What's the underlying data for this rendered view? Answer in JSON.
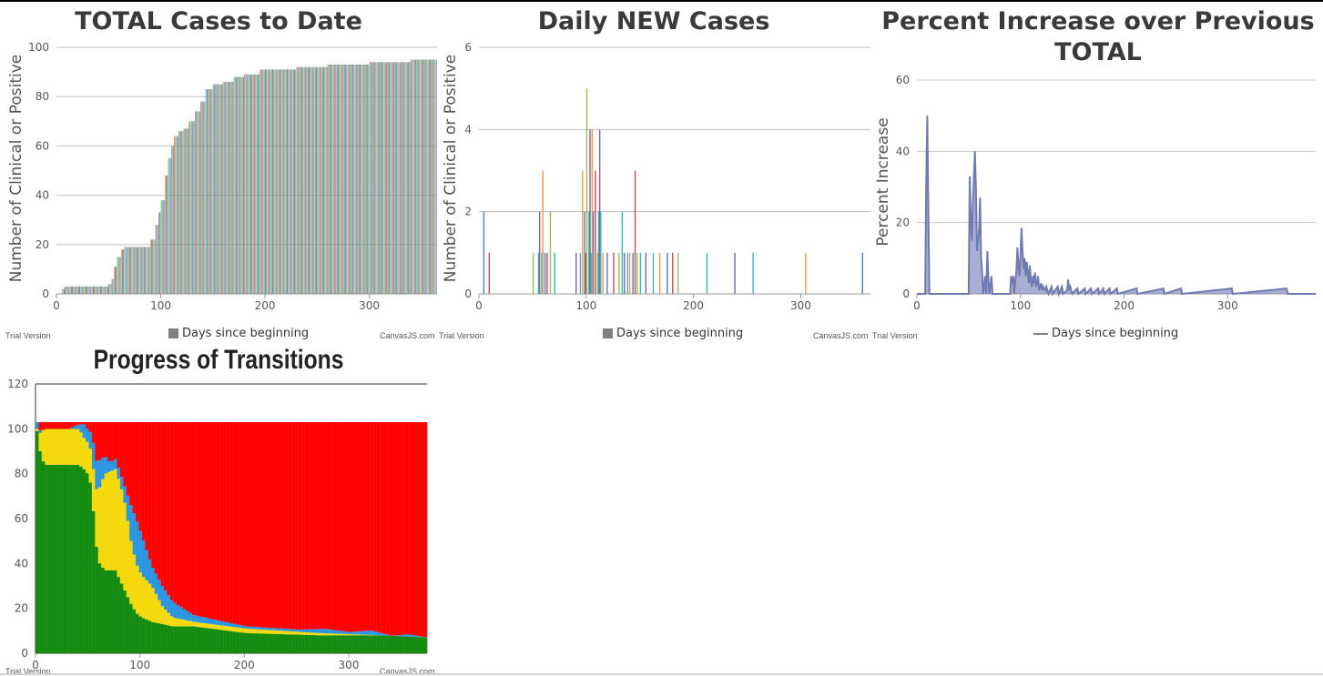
{
  "watermarks": {
    "trial": "Trial Version",
    "brand": "CanvasJS.com"
  },
  "chart_data": [
    {
      "type": "bar",
      "title": "TOTAL Cases to Date",
      "ylabel": "Number of Clinical or Positive",
      "legend": "Days since beginning",
      "legend_position": "bottom",
      "xlim": [
        0,
        365
      ],
      "ylim": [
        0,
        100
      ],
      "x_ticks": [
        0,
        100,
        200,
        300
      ],
      "y_ticks": [
        0,
        20,
        40,
        60,
        80,
        100
      ],
      "bar_colors": [
        "#4f81bc",
        "#c0504e",
        "#9bbb58",
        "#23bfaa",
        "#8064a1",
        "#4aacc5",
        "#f79647"
      ],
      "cumulative_points": [
        [
          0,
          0
        ],
        [
          5,
          2
        ],
        [
          8,
          3
        ],
        [
          50,
          4
        ],
        [
          53,
          6
        ],
        [
          55,
          11
        ],
        [
          58,
          15
        ],
        [
          62,
          18
        ],
        [
          65,
          19
        ],
        [
          85,
          19
        ],
        [
          90,
          22
        ],
        [
          95,
          28
        ],
        [
          98,
          33
        ],
        [
          100,
          38
        ],
        [
          104,
          48
        ],
        [
          107,
          55
        ],
        [
          110,
          60
        ],
        [
          113,
          64
        ],
        [
          117,
          66
        ],
        [
          122,
          67
        ],
        [
          127,
          70
        ],
        [
          133,
          74
        ],
        [
          138,
          78
        ],
        [
          143,
          83
        ],
        [
          150,
          85
        ],
        [
          160,
          86
        ],
        [
          170,
          88
        ],
        [
          180,
          89
        ],
        [
          195,
          91
        ],
        [
          230,
          92
        ],
        [
          260,
          93
        ],
        [
          300,
          94
        ],
        [
          340,
          95
        ],
        [
          365,
          95
        ]
      ]
    },
    {
      "type": "bar",
      "title": "Daily NEW Cases",
      "ylabel": "Number of Clinical or Positive",
      "legend": "Days since beginning",
      "legend_position": "bottom",
      "xlim": [
        0,
        365
      ],
      "ylim": [
        0,
        6
      ],
      "x_ticks": [
        0,
        100,
        200,
        300
      ],
      "y_ticks": [
        0,
        2,
        4,
        6
      ],
      "points": [
        [
          4,
          2
        ],
        [
          9,
          1
        ],
        [
          50,
          1
        ],
        [
          55,
          1
        ],
        [
          56,
          2
        ],
        [
          58,
          1
        ],
        [
          59,
          3
        ],
        [
          61,
          1
        ],
        [
          63,
          1
        ],
        [
          66,
          2
        ],
        [
          70,
          1
        ],
        [
          90,
          1
        ],
        [
          94,
          1
        ],
        [
          96,
          3
        ],
        [
          98,
          2
        ],
        [
          99,
          1
        ],
        [
          100,
          5
        ],
        [
          102,
          2
        ],
        [
          103,
          4
        ],
        [
          104,
          1
        ],
        [
          105,
          4
        ],
        [
          106,
          2
        ],
        [
          108,
          3
        ],
        [
          110,
          1
        ],
        [
          111,
          2
        ],
        [
          112,
          4
        ],
        [
          113,
          2
        ],
        [
          115,
          1
        ],
        [
          119,
          1
        ],
        [
          125,
          1
        ],
        [
          130,
          1
        ],
        [
          133,
          2
        ],
        [
          135,
          1
        ],
        [
          138,
          1
        ],
        [
          140,
          1
        ],
        [
          143,
          1
        ],
        [
          145,
          3
        ],
        [
          147,
          1
        ],
        [
          150,
          1
        ],
        [
          155,
          1
        ],
        [
          162,
          1
        ],
        [
          168,
          1
        ],
        [
          175,
          1
        ],
        [
          180,
          1
        ],
        [
          185,
          1
        ],
        [
          212,
          1
        ],
        [
          238,
          1
        ],
        [
          255,
          1
        ],
        [
          304,
          1
        ],
        [
          357,
          1
        ]
      ]
    },
    {
      "type": "area",
      "title": "Percent Increase over Previous TOTAL",
      "ylabel": "Percent Increase",
      "legend": "Days since beginning",
      "legend_position": "bottom",
      "color": "#6f7ab1",
      "xlim": [
        0,
        385
      ],
      "ylim": [
        0,
        60
      ],
      "x_ticks": [
        0,
        100,
        200,
        300
      ],
      "y_ticks": [
        0,
        20,
        40,
        60
      ],
      "points": [
        [
          0,
          0
        ],
        [
          8,
          0
        ],
        [
          9,
          30
        ],
        [
          10,
          50
        ],
        [
          11,
          25
        ],
        [
          12,
          0
        ],
        [
          50,
          0
        ],
        [
          51,
          33
        ],
        [
          52,
          20
        ],
        [
          53,
          15
        ],
        [
          54,
          25
        ],
        [
          56,
          40
        ],
        [
          57,
          30
        ],
        [
          58,
          12
        ],
        [
          60,
          18
        ],
        [
          61,
          27
        ],
        [
          62,
          10
        ],
        [
          63,
          6
        ],
        [
          64,
          0
        ],
        [
          66,
          5
        ],
        [
          67,
          0
        ],
        [
          68,
          12
        ],
        [
          69,
          4
        ],
        [
          70,
          0
        ],
        [
          72,
          5
        ],
        [
          73,
          0
        ],
        [
          90,
          0
        ],
        [
          91,
          5
        ],
        [
          92,
          3
        ],
        [
          93,
          5
        ],
        [
          94,
          0
        ],
        [
          95,
          4
        ],
        [
          96,
          6
        ],
        [
          97,
          13
        ],
        [
          98,
          8
        ],
        [
          99,
          5
        ],
        [
          100,
          11
        ],
        [
          101,
          18.5
        ],
        [
          102,
          12
        ],
        [
          103,
          7
        ],
        [
          104,
          10
        ],
        [
          105,
          5
        ],
        [
          106,
          9
        ],
        [
          107,
          6
        ],
        [
          108,
          3
        ],
        [
          109,
          8
        ],
        [
          110,
          4
        ],
        [
          111,
          2
        ],
        [
          112,
          5
        ],
        [
          113,
          3
        ],
        [
          114,
          6
        ],
        [
          115,
          2
        ],
        [
          116,
          3
        ],
        [
          117,
          5
        ],
        [
          118,
          1
        ],
        [
          120,
          3
        ],
        [
          121,
          1
        ],
        [
          122,
          2
        ],
        [
          124,
          1
        ],
        [
          125,
          2
        ],
        [
          127,
          0
        ],
        [
          130,
          2
        ],
        [
          131,
          0
        ],
        [
          136,
          2
        ],
        [
          137,
          0
        ],
        [
          140,
          2
        ],
        [
          141,
          0
        ],
        [
          145,
          1
        ],
        [
          146,
          4
        ],
        [
          147,
          1
        ],
        [
          148,
          2
        ],
        [
          150,
          0
        ],
        [
          155,
          1.5
        ],
        [
          156,
          0
        ],
        [
          162,
          1.5
        ],
        [
          163,
          0
        ],
        [
          168,
          1.5
        ],
        [
          169,
          0
        ],
        [
          175,
          1.5
        ],
        [
          176,
          0
        ],
        [
          180,
          1.5
        ],
        [
          181,
          0
        ],
        [
          186,
          1.5
        ],
        [
          187,
          0
        ],
        [
          193,
          1.5
        ],
        [
          194,
          0
        ],
        [
          212,
          1.5
        ],
        [
          213,
          0
        ],
        [
          238,
          1.5
        ],
        [
          239,
          0
        ],
        [
          255,
          1.5
        ],
        [
          256,
          0
        ],
        [
          304,
          1.5
        ],
        [
          305,
          0
        ],
        [
          357,
          1.5
        ],
        [
          358,
          0
        ],
        [
          385,
          0
        ]
      ]
    },
    {
      "type": "stacked-bar",
      "title": "Progress of Transitions",
      "xlim": [
        0,
        375
      ],
      "ylim": [
        0,
        120
      ],
      "x_ticks": [
        0,
        100,
        200,
        300
      ],
      "y_ticks": [
        0,
        20,
        40,
        60,
        80,
        100,
        120
      ],
      "total": 103,
      "series": [
        {
          "color": "#138b0f",
          "points": [
            [
              0,
              99
            ],
            [
              4,
              87
            ],
            [
              8,
              84
            ],
            [
              40,
              84
            ],
            [
              45,
              82
            ],
            [
              50,
              79
            ],
            [
              53,
              70
            ],
            [
              56,
              50
            ],
            [
              60,
              40
            ],
            [
              65,
              37
            ],
            [
              75,
              37
            ],
            [
              80,
              32
            ],
            [
              85,
              27
            ],
            [
              90,
              22
            ],
            [
              95,
              18
            ],
            [
              100,
              16
            ],
            [
              110,
              14
            ],
            [
              130,
              12
            ],
            [
              150,
              12
            ],
            [
              200,
              9
            ],
            [
              270,
              8
            ],
            [
              330,
              8
            ],
            [
              375,
              7
            ]
          ]
        },
        {
          "color": "#f5d90a",
          "points": [
            [
              0,
              1
            ],
            [
              5,
              13
            ],
            [
              8,
              16
            ],
            [
              40,
              16
            ],
            [
              45,
              14
            ],
            [
              50,
              14
            ],
            [
              55,
              20
            ],
            [
              60,
              34
            ],
            [
              65,
              43
            ],
            [
              75,
              45
            ],
            [
              80,
              43
            ],
            [
              85,
              38
            ],
            [
              90,
              28
            ],
            [
              95,
              22
            ],
            [
              100,
              19
            ],
            [
              110,
              16
            ],
            [
              120,
              8
            ],
            [
              130,
              4
            ],
            [
              150,
              2
            ],
            [
              200,
              2
            ],
            [
              270,
              1
            ],
            [
              330,
              0
            ],
            [
              375,
              0
            ]
          ]
        },
        {
          "color": "#2a96e2",
          "points": [
            [
              0,
              3
            ],
            [
              5,
              0
            ],
            [
              30,
              0
            ],
            [
              40,
              2
            ],
            [
              45,
              6
            ],
            [
              50,
              6
            ],
            [
              55,
              13
            ],
            [
              60,
              12
            ],
            [
              70,
              4
            ],
            [
              80,
              5
            ],
            [
              85,
              8
            ],
            [
              90,
              16
            ],
            [
              95,
              20
            ],
            [
              100,
              18
            ],
            [
              110,
              9
            ],
            [
              120,
              9
            ],
            [
              130,
              7
            ],
            [
              150,
              3
            ],
            [
              200,
              1
            ],
            [
              250,
              1
            ],
            [
              275,
              2
            ],
            [
              300,
              1
            ],
            [
              320,
              2
            ],
            [
              340,
              0
            ],
            [
              355,
              1
            ],
            [
              375,
              0
            ]
          ]
        }
      ],
      "remainder_color": "#ff0000"
    }
  ]
}
